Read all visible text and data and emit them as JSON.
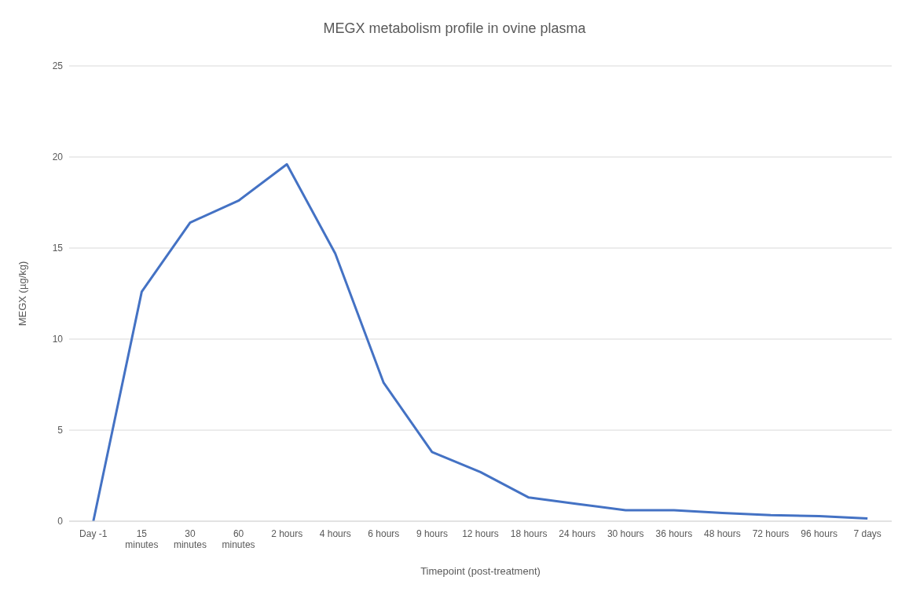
{
  "chart_data": {
    "type": "line",
    "title": "MEGX metabolism profile in ovine plasma",
    "xlabel": "Timepoint (post-treatment)",
    "ylabel": "MEGX (µg/kg)",
    "categories": [
      "Day -1",
      "15 minutes",
      "30 minutes",
      "60 minutes",
      "2 hours",
      "4 hours",
      "6 hours",
      "9 hours",
      "12 hours",
      "18 hours",
      "24 hours",
      "30 hours",
      "36 hours",
      "48 hours",
      "72 hours",
      "96 hours",
      "7 days"
    ],
    "series": [
      {
        "color": "#4472c4",
        "values": [
          0,
          12.6,
          16.4,
          17.6,
          19.6,
          14.7,
          7.6,
          3.8,
          2.7,
          1.3,
          0.95,
          0.6,
          0.6,
          0.45,
          0.33,
          0.28,
          0.15
        ]
      }
    ],
    "ylim": [
      0,
      25
    ],
    "yticks": [
      0,
      5,
      10,
      15,
      20,
      25
    ],
    "grid": "y",
    "legend": false,
    "marker": "none",
    "line_style": "solid"
  }
}
